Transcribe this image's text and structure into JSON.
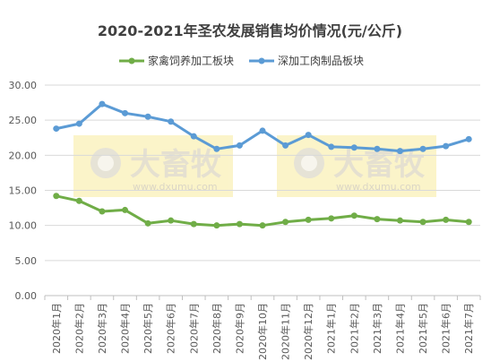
{
  "chart_data": {
    "type": "line",
    "title": "2020-2021年圣农发展销售均价情况(元/公斤)",
    "categories": [
      "2020年1月",
      "2020年2月",
      "2020年3月",
      "2020年4月",
      "2020年5月",
      "2020年6月",
      "2020年7月",
      "2020年8月",
      "2020年9月",
      "2020年10月",
      "2020年11月",
      "2020年12月",
      "2021年1月",
      "2021年2月",
      "2021年3月",
      "2021年4月",
      "2021年5月",
      "2021年6月",
      "2021年7月"
    ],
    "series": [
      {
        "name": "家禽饲养加工板块",
        "color": "#70AD47",
        "values": [
          14.2,
          13.5,
          12.0,
          12.2,
          10.3,
          10.7,
          10.2,
          10.0,
          10.2,
          10.0,
          10.5,
          10.8,
          11.0,
          11.4,
          10.9,
          10.7,
          10.5,
          10.8,
          10.5
        ]
      },
      {
        "name": "深加工肉制品板块",
        "color": "#5B9BD5",
        "values": [
          23.8,
          24.5,
          27.3,
          26.0,
          25.5,
          24.8,
          22.7,
          20.9,
          21.4,
          23.5,
          21.4,
          22.9,
          21.2,
          21.1,
          20.9,
          20.6,
          20.9,
          21.3,
          22.3
        ]
      }
    ],
    "y_ticks": [
      "0.00",
      "5.00",
      "10.00",
      "15.00",
      "20.00",
      "25.00",
      "30.00"
    ],
    "ylim": [
      0,
      30
    ],
    "grid": true,
    "legend_position": "top",
    "watermark": {
      "brand": "大畜牧",
      "url": "www.dxumu.com"
    }
  }
}
